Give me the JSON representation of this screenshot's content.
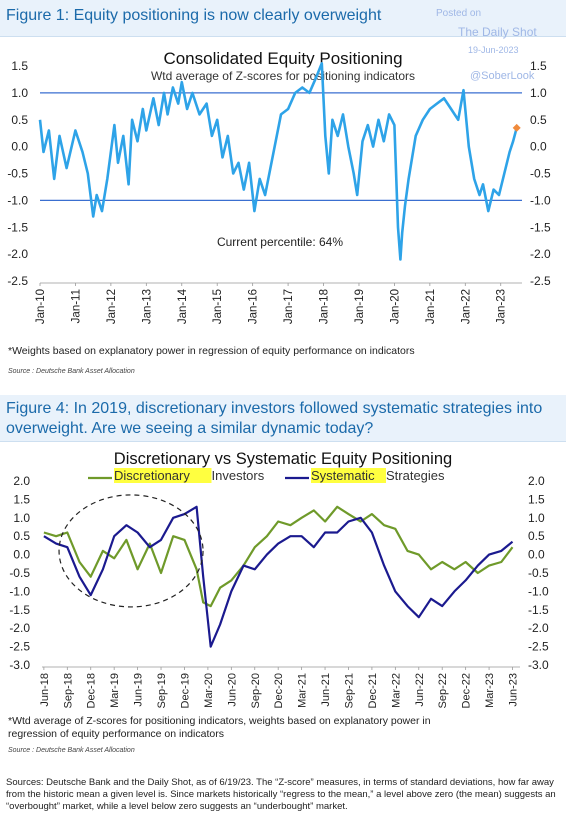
{
  "watermark": {
    "posted": "Posted on",
    "site": "The Daily Shot",
    "date": "19-Jun-2023",
    "handle": "@SoberLook"
  },
  "figure1": {
    "header": "Figure 1: Equity positioning is now clearly overweight",
    "footnote": "*Weights based on explanatory power in regression of equity performance on indicators",
    "source": "Source : Deutsche Bank Asset Allocation"
  },
  "figure4": {
    "header": "Figure 4: In 2019, discretionary investors followed systematic strategies into overweight. Are we seeing a similar dynamic today?",
    "footnote_line1": "*Wtd average of Z-scores for positioning indicators, weights based on explanatory power in",
    "footnote_line2": "regression of equity performance on indicators",
    "source": "Source : Deutsche Bank Asset Allocation"
  },
  "bottom_sources": "Sources: Deutsche Bank and the Daily Shot, as of 6/19/23. The “Z-score” measures, in terms of standard deviations, how far away from the historic mean a given level is. Since markets historically “regress to the mean,” a level above zero (the mean) suggests an “overbought” market, while a level below zero suggests an “underbought” market.",
  "chart_data": [
    {
      "type": "line",
      "title": "Consolidated Equity Positioning",
      "subtitle": "Wtd average of Z-scores for positioning indicators",
      "annotation": "Current percentile: 64%",
      "ylim": [
        -2.5,
        1.5
      ],
      "yticks": [
        "1.5",
        "1.0",
        "0.5",
        "0.0",
        "-0.5",
        "-1.0",
        "-1.5",
        "-2.0",
        "-2.5"
      ],
      "yticks_values": [
        1.5,
        1.0,
        0.5,
        0.0,
        -0.5,
        -1.0,
        -1.5,
        -2.0,
        -2.5
      ],
      "xlim": [
        2010.0,
        2023.6
      ],
      "xticks": [
        "Jan-10",
        "Jan-11",
        "Jan-12",
        "Jan-13",
        "Jan-14",
        "Jan-15",
        "Jan-16",
        "Jan-17",
        "Jan-18",
        "Jan-19",
        "Jan-20",
        "Jan-21",
        "Jan-22",
        "Jan-23"
      ],
      "xticks_values": [
        2010,
        2011,
        2012,
        2013,
        2014,
        2015,
        2016,
        2017,
        2018,
        2019,
        2020,
        2021,
        2022,
        2023
      ],
      "reference_lines": [
        1.0,
        -1.0
      ],
      "colors": {
        "line": "#2ea3e8",
        "ref": "#3a6fd0",
        "marker": "#f08a3c"
      },
      "series": [
        {
          "x": [
            2010.0,
            2010.1,
            2010.25,
            2010.4,
            2010.55,
            2010.75,
            2011.0,
            2011.2,
            2011.35,
            2011.5,
            2011.6,
            2011.75,
            2011.9,
            2012.1,
            2012.2,
            2012.35,
            2012.5,
            2012.6,
            2012.75,
            2012.9,
            2013.0,
            2013.2,
            2013.35,
            2013.5,
            2013.6,
            2013.75,
            2013.9,
            2014.0,
            2014.15,
            2014.3,
            2014.5,
            2014.7,
            2014.85,
            2015.0,
            2015.15,
            2015.3,
            2015.45,
            2015.6,
            2015.75,
            2015.9,
            2016.05,
            2016.2,
            2016.35,
            2016.5,
            2016.65,
            2016.8,
            2017.0,
            2017.2,
            2017.4,
            2017.6,
            2017.8,
            2017.95,
            2018.05,
            2018.15,
            2018.25,
            2018.4,
            2018.55,
            2018.7,
            2018.85,
            2018.95,
            2019.1,
            2019.25,
            2019.4,
            2019.55,
            2019.7,
            2019.85,
            2020.0,
            2020.1,
            2020.17,
            2020.22,
            2020.3,
            2020.4,
            2020.6,
            2020.8,
            2021.0,
            2021.2,
            2021.4,
            2021.6,
            2021.8,
            2021.95,
            2022.1,
            2022.25,
            2022.4,
            2022.5,
            2022.65,
            2022.8,
            2022.95,
            2023.1,
            2023.25,
            2023.35,
            2023.45
          ],
          "y": [
            0.5,
            -0.1,
            0.3,
            -0.6,
            0.2,
            -0.4,
            0.3,
            -0.1,
            -0.5,
            -1.3,
            -0.9,
            -1.2,
            -0.6,
            0.4,
            -0.3,
            0.2,
            -0.7,
            0.5,
            0.1,
            0.7,
            0.3,
            0.9,
            0.4,
            1.0,
            0.6,
            1.1,
            0.8,
            1.2,
            0.7,
            1.0,
            0.6,
            0.8,
            0.2,
            0.5,
            -0.2,
            0.2,
            -0.5,
            -0.3,
            -0.8,
            -0.3,
            -1.2,
            -0.6,
            -0.9,
            -0.4,
            0.1,
            0.6,
            0.7,
            1.0,
            1.1,
            1.0,
            1.3,
            1.55,
            0.2,
            -0.5,
            0.5,
            0.2,
            0.6,
            0.0,
            -0.5,
            -0.9,
            0.1,
            0.4,
            0.0,
            0.5,
            0.1,
            0.6,
            0.4,
            -1.5,
            -2.1,
            -1.6,
            -1.1,
            -0.6,
            0.2,
            0.5,
            0.7,
            0.8,
            0.9,
            0.7,
            0.5,
            1.05,
            0.0,
            -0.6,
            -0.9,
            -0.7,
            -1.2,
            -0.8,
            -0.9,
            -0.5,
            -0.1,
            0.1,
            0.35
          ]
        }
      ],
      "last_point": {
        "x": 2023.45,
        "y": 0.35
      }
    },
    {
      "type": "line",
      "title": "Discretionary vs Systematic Equity Positioning",
      "ylim": [
        -3.0,
        2.0
      ],
      "yticks": [
        "2.0",
        "1.5",
        "1.0",
        "0.5",
        "0.0",
        "-0.5",
        "-1.0",
        "-1.5",
        "-2.0",
        "-2.5",
        "-3.0"
      ],
      "yticks_values": [
        2.0,
        1.5,
        1.0,
        0.5,
        0.0,
        -0.5,
        -1.0,
        -1.5,
        -2.0,
        -2.5,
        -3.0
      ],
      "xlim": [
        2018.4,
        2023.5
      ],
      "xticks": [
        "Jun-18",
        "Sep-18",
        "Dec-18",
        "Mar-19",
        "Jun-19",
        "Sep-19",
        "Dec-19",
        "Mar-20",
        "Jun-20",
        "Sep-20",
        "Dec-20",
        "Mar-21",
        "Jun-21",
        "Sep-21",
        "Dec-21",
        "Mar-22",
        "Jun-22",
        "Sep-22",
        "Dec-22",
        "Mar-23",
        "Jun-23"
      ],
      "xticks_values": [
        2018.42,
        2018.67,
        2018.92,
        2019.17,
        2019.42,
        2019.67,
        2019.92,
        2020.17,
        2020.42,
        2020.67,
        2020.92,
        2021.17,
        2021.42,
        2021.67,
        2021.92,
        2022.17,
        2022.42,
        2022.67,
        2022.92,
        2023.17,
        2023.42
      ],
      "legend": {
        "placement": "top",
        "highlight": "#ffff40"
      },
      "series": [
        {
          "name": "Discretionary Investors",
          "legend_before": "-",
          "legend_highlight": "Discretionary",
          "legend_after": " Investors",
          "color": "#6f9a2a",
          "x": [
            2018.42,
            2018.55,
            2018.67,
            2018.8,
            2018.92,
            2019.05,
            2019.17,
            2019.3,
            2019.42,
            2019.55,
            2019.67,
            2019.8,
            2019.92,
            2020.05,
            2020.12,
            2020.2,
            2020.3,
            2020.42,
            2020.55,
            2020.67,
            2020.8,
            2020.92,
            2021.05,
            2021.17,
            2021.3,
            2021.42,
            2021.55,
            2021.67,
            2021.8,
            2021.92,
            2022.05,
            2022.17,
            2022.3,
            2022.42,
            2022.55,
            2022.67,
            2022.8,
            2022.92,
            2023.05,
            2023.17,
            2023.3,
            2023.42
          ],
          "y": [
            0.6,
            0.5,
            0.6,
            -0.2,
            -0.6,
            0.1,
            -0.1,
            0.4,
            -0.4,
            0.3,
            -0.5,
            0.5,
            0.4,
            -0.4,
            -1.3,
            -1.4,
            -0.9,
            -0.7,
            -0.3,
            0.2,
            0.5,
            0.9,
            0.8,
            1.0,
            1.2,
            0.9,
            1.3,
            1.1,
            0.9,
            1.1,
            0.8,
            0.7,
            0.1,
            0.0,
            -0.4,
            -0.2,
            -0.4,
            -0.2,
            -0.5,
            -0.3,
            -0.2,
            0.2
          ]
        },
        {
          "name": "Systematic Strategies",
          "legend_before": "-",
          "legend_highlight": "Systematic",
          "legend_after": " Strategies",
          "color": "#1b1a8f",
          "x": [
            2018.42,
            2018.55,
            2018.67,
            2018.8,
            2018.92,
            2019.05,
            2019.17,
            2019.3,
            2019.42,
            2019.55,
            2019.67,
            2019.8,
            2019.92,
            2020.05,
            2020.12,
            2020.2,
            2020.3,
            2020.42,
            2020.55,
            2020.67,
            2020.8,
            2020.92,
            2021.05,
            2021.17,
            2021.3,
            2021.42,
            2021.55,
            2021.67,
            2021.8,
            2021.92,
            2022.05,
            2022.17,
            2022.3,
            2022.42,
            2022.55,
            2022.67,
            2022.8,
            2022.92,
            2023.05,
            2023.17,
            2023.3,
            2023.42
          ],
          "y": [
            0.5,
            0.3,
            0.2,
            -0.6,
            -1.1,
            -0.4,
            0.5,
            0.8,
            0.6,
            0.2,
            0.4,
            1.0,
            1.1,
            1.3,
            -0.6,
            -2.5,
            -1.9,
            -1.0,
            -0.3,
            -0.4,
            0.0,
            0.3,
            0.5,
            0.5,
            0.2,
            0.6,
            0.6,
            0.9,
            1.0,
            0.6,
            -0.3,
            -1.0,
            -1.4,
            -1.7,
            -1.2,
            -1.4,
            -1.0,
            -0.7,
            -0.3,
            0.0,
            0.1,
            0.35
          ]
        }
      ],
      "annotation_shape": "dashed-circle"
    }
  ]
}
